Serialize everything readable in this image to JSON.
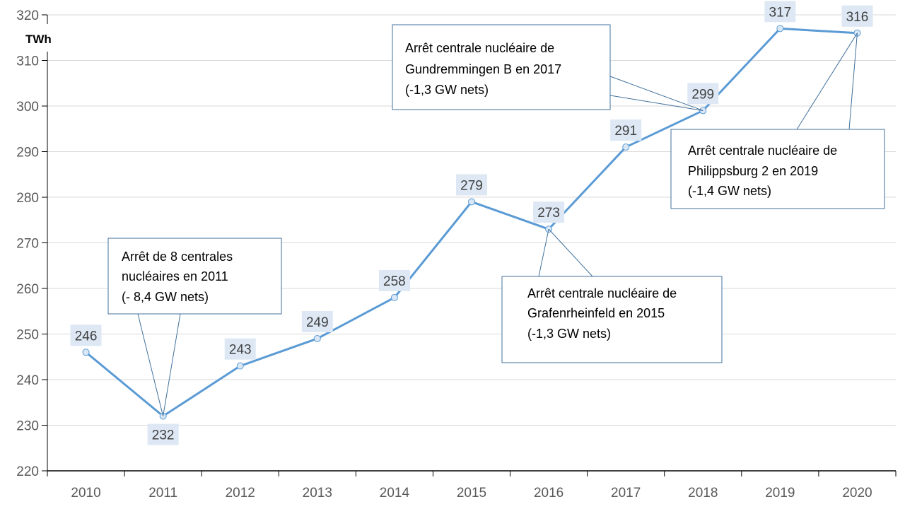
{
  "chart_data": {
    "type": "line",
    "title": "",
    "ylabel": "TWh",
    "xlabel": "",
    "ylim": [
      220,
      320
    ],
    "yticks": [
      "220",
      "230",
      "240",
      "250",
      "260",
      "270",
      "280",
      "290",
      "300",
      "310",
      "320"
    ],
    "categories": [
      "2010",
      "2011",
      "2012",
      "2013",
      "2014",
      "2015",
      "2016",
      "2017",
      "2018",
      "2019",
      "2020"
    ],
    "values": [
      246,
      232,
      243,
      249,
      258,
      279,
      273,
      291,
      299,
      317,
      316
    ],
    "data_labels": [
      "246",
      "232",
      "243",
      "249",
      "258",
      "279",
      "273",
      "291",
      "299",
      "317",
      "316"
    ],
    "grid": true,
    "legend": "none",
    "colors": {
      "line": "#5b9bd5",
      "marker_fill": "#dae8f6",
      "label_bg": "#dde8f4",
      "callout_border": "#41719c"
    },
    "annotations": [
      {
        "target": "2011",
        "lines": [
          "Arrêt de 8 centrales",
          "nucléaires en 2011",
          "(- 8,4 GW nets)"
        ]
      },
      {
        "target": "2018",
        "lines": [
          "Arrêt centrale nucléaire de",
          "Gundremmingen B en 2017",
          "(-1,3 GW nets)"
        ]
      },
      {
        "target": "2016",
        "lines": [
          "Arrêt centrale nucléaire de",
          "Grafenrheinfeld en 2015",
          "(-1,3 GW nets)"
        ]
      },
      {
        "target": "2020",
        "lines": [
          "Arrêt centrale nucléaire de",
          "Philippsburg 2 en 2019",
          "(-1,4 GW nets)"
        ]
      }
    ]
  }
}
